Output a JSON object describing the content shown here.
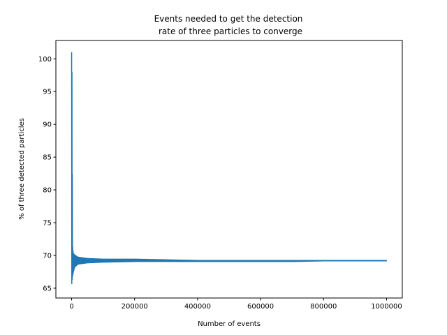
{
  "chart_data": {
    "type": "line",
    "title_lines": [
      "Events needed to get the detection",
      "rate of three particles to converge"
    ],
    "xlabel": "Number of events",
    "ylabel": "% of three detected particles",
    "xlim": [
      -50000,
      1050000
    ],
    "ylim": [
      63.5,
      102.8
    ],
    "xticks": [
      0,
      200000,
      400000,
      600000,
      800000,
      1000000
    ],
    "xtick_labels": [
      "0",
      "200000",
      "400000",
      "600000",
      "800000",
      "1000000"
    ],
    "yticks": [
      65,
      70,
      75,
      80,
      85,
      90,
      95,
      100
    ],
    "ytick_labels": [
      "65",
      "70",
      "75",
      "80",
      "85",
      "90",
      "95",
      "100"
    ],
    "grid": false,
    "series": [
      {
        "color": "#1f77b4",
        "x_range": [
          0,
          1000000
        ],
        "converged_value": 69.2,
        "upper_envelope": [
          [
            0,
            101.0
          ],
          [
            1000,
            99.5
          ],
          [
            3000,
            71.5
          ],
          [
            5000,
            70.4
          ],
          [
            10000,
            70.1
          ],
          [
            20000,
            69.8
          ],
          [
            50000,
            69.6
          ],
          [
            100000,
            69.5
          ],
          [
            200000,
            69.5
          ],
          [
            300000,
            69.4
          ],
          [
            400000,
            69.3
          ],
          [
            500000,
            69.3
          ],
          [
            600000,
            69.3
          ],
          [
            700000,
            69.3
          ],
          [
            800000,
            69.3
          ],
          [
            1000000,
            69.3
          ]
        ],
        "lower_envelope": [
          [
            0,
            65.2
          ],
          [
            1000,
            66.0
          ],
          [
            3000,
            66.8
          ],
          [
            5000,
            67.3
          ],
          [
            10000,
            68.2
          ],
          [
            20000,
            68.6
          ],
          [
            50000,
            68.8
          ],
          [
            100000,
            68.9
          ],
          [
            200000,
            69.0
          ],
          [
            300000,
            69.0
          ],
          [
            400000,
            69.0
          ],
          [
            500000,
            69.0
          ],
          [
            600000,
            69.0
          ],
          [
            700000,
            69.0
          ],
          [
            800000,
            69.1
          ],
          [
            1000000,
            69.1
          ]
        ]
      }
    ]
  }
}
